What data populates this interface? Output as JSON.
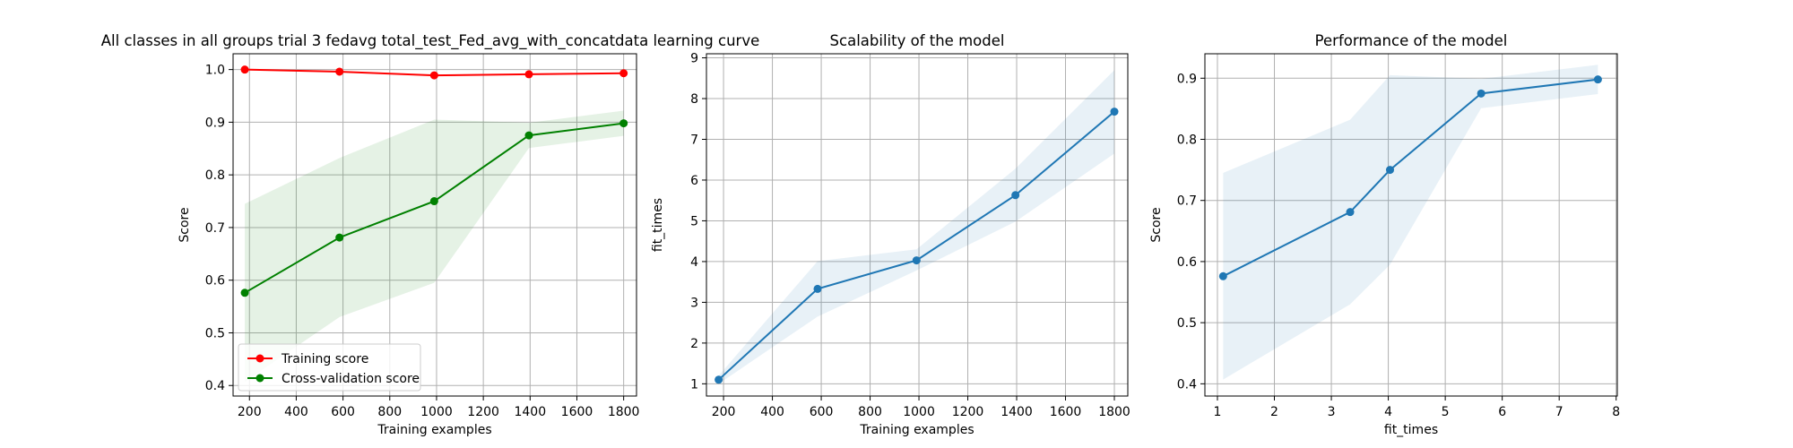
{
  "chart_data": [
    {
      "type": "line",
      "title": "All classes in all groups trial 3 fedavg total_test_Fed_avg_with_concatdata learning curve",
      "xlabel": "Training examples",
      "ylabel": "Score",
      "xlim": [
        130,
        1855
      ],
      "ylim": [
        0.38,
        1.03
      ],
      "xticks": [
        200,
        400,
        600,
        800,
        1000,
        1200,
        1400,
        1600,
        1800
      ],
      "yticks": [
        0.4,
        0.5,
        0.6,
        0.7,
        0.8,
        0.9,
        1.0
      ],
      "ytick_decimals": 1,
      "grid": true,
      "legend": "lower-left",
      "series": [
        {
          "name": "Training score",
          "color": "#ff0000",
          "x": [
            180,
            585,
            990,
            1395,
            1800
          ],
          "values": [
            1.0,
            0.996,
            0.989,
            0.991,
            0.993
          ],
          "band_low": [
            1.0,
            0.996,
            0.989,
            0.991,
            0.993
          ],
          "band_high": [
            1.0,
            0.996,
            0.989,
            0.991,
            0.993
          ],
          "band_color": "#ff0000"
        },
        {
          "name": "Cross-validation score",
          "color": "#008000",
          "x": [
            180,
            585,
            990,
            1395,
            1800
          ],
          "values": [
            0.576,
            0.681,
            0.75,
            0.875,
            0.898
          ],
          "band_low": [
            0.407,
            0.53,
            0.595,
            0.851,
            0.874
          ],
          "band_high": [
            0.745,
            0.832,
            0.905,
            0.899,
            0.922
          ],
          "band_color": "#008000"
        }
      ]
    },
    {
      "type": "line",
      "title": "Scalability of the model",
      "xlabel": "Training examples",
      "ylabel": "fit_times",
      "xlim": [
        130,
        1855
      ],
      "ylim": [
        0.7,
        9.1
      ],
      "xticks": [
        200,
        400,
        600,
        800,
        1000,
        1200,
        1400,
        1600,
        1800
      ],
      "yticks": [
        1,
        2,
        3,
        4,
        5,
        6,
        7,
        8,
        9
      ],
      "ytick_decimals": 0,
      "grid": true,
      "series": [
        {
          "color": "#1f77b4",
          "x": [
            180,
            585,
            990,
            1395,
            1800
          ],
          "values": [
            1.1,
            3.33,
            4.03,
            5.63,
            7.68
          ],
          "band_low": [
            1.0,
            2.65,
            3.78,
            4.98,
            6.65
          ],
          "band_high": [
            1.2,
            4.01,
            4.3,
            6.28,
            8.7
          ],
          "band_color": "#1f77b4"
        }
      ]
    },
    {
      "type": "line",
      "title": "Performance of the model",
      "xlabel": "fit_times",
      "ylabel": "Score",
      "xlim": [
        0.78,
        8.02
      ],
      "ylim": [
        0.38,
        0.94
      ],
      "xticks": [
        1,
        2,
        3,
        4,
        5,
        6,
        7,
        8
      ],
      "yticks": [
        0.4,
        0.5,
        0.6,
        0.7,
        0.8,
        0.9
      ],
      "ytick_decimals": 1,
      "grid": true,
      "series": [
        {
          "color": "#1f77b4",
          "x": [
            1.1,
            3.33,
            4.03,
            5.63,
            7.68
          ],
          "values": [
            0.576,
            0.681,
            0.75,
            0.875,
            0.898
          ],
          "band_low": [
            0.407,
            0.53,
            0.595,
            0.851,
            0.874
          ],
          "band_high": [
            0.745,
            0.832,
            0.905,
            0.899,
            0.922
          ],
          "band_color": "#1f77b4"
        }
      ]
    }
  ]
}
